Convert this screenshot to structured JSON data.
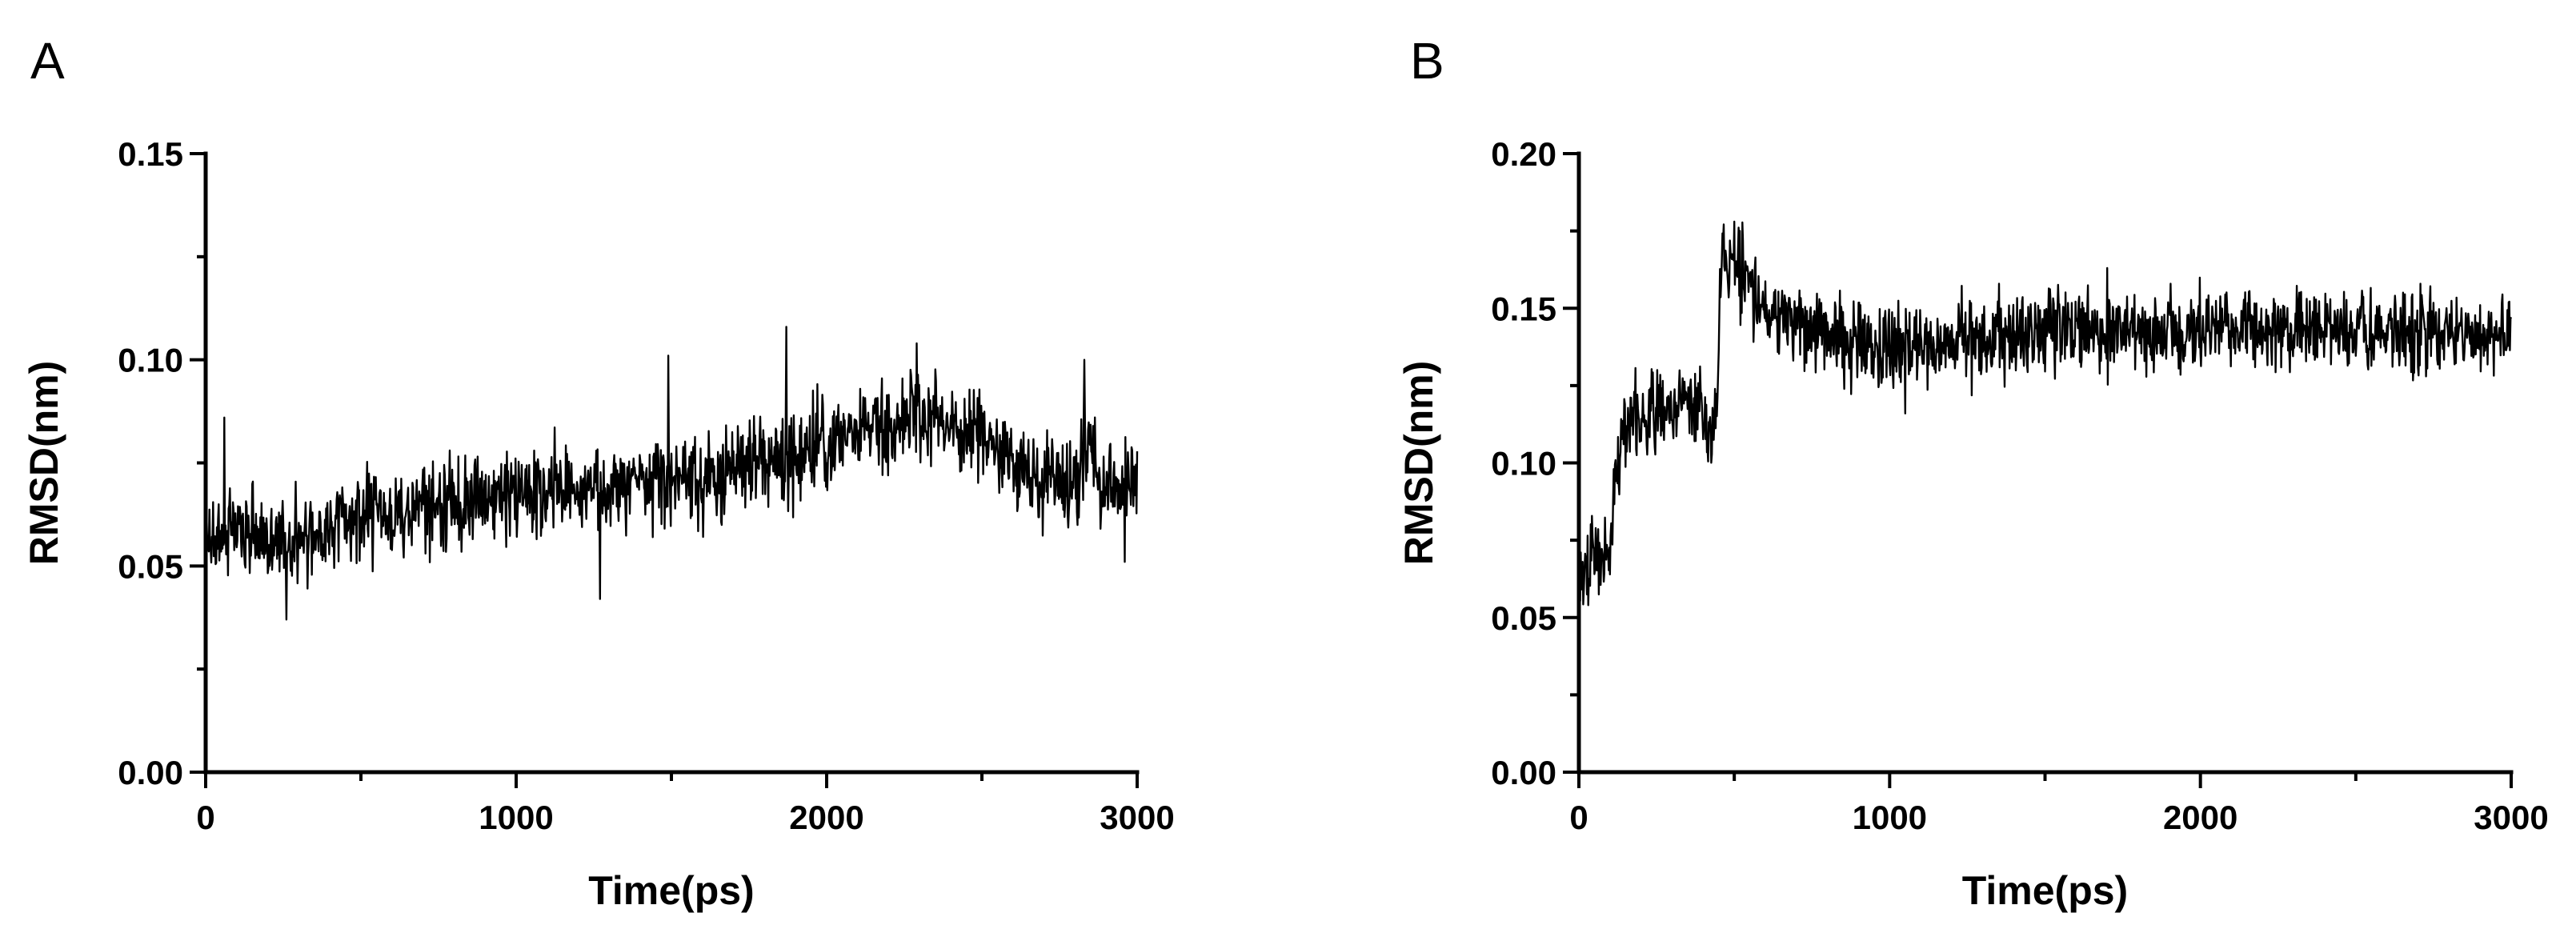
{
  "chart_data": [
    {
      "panel": "A",
      "type": "line",
      "xlabel": "Time(ps)",
      "ylabel": "RMSD(nm)",
      "xlim": [
        0,
        3000
      ],
      "ylim": [
        0,
        0.15
      ],
      "x_ticks": [
        0,
        1000,
        2000,
        3000
      ],
      "x_tick_labels": [
        "0",
        "1000",
        "2000",
        "3000"
      ],
      "x_minor_ticks": [
        500,
        1500,
        2500
      ],
      "y_ticks": [
        0,
        0.05,
        0.1,
        0.15
      ],
      "y_tick_labels": [
        "0.00",
        "0.05",
        "0.10",
        "0.15"
      ],
      "y_minor_ticks": [
        0.025,
        0.075,
        0.125
      ],
      "grid": false,
      "color": "#000000",
      "noise": 0.0055,
      "spikes": [
        {
          "x": 60,
          "y": 0.086
        },
        {
          "x": 260,
          "y": 0.037
        },
        {
          "x": 1270,
          "y": 0.042
        },
        {
          "x": 1490,
          "y": 0.101
        },
        {
          "x": 1870,
          "y": 0.108
        },
        {
          "x": 2290,
          "y": 0.104
        },
        {
          "x": 2830,
          "y": 0.1
        },
        {
          "x": 2960,
          "y": 0.051
        }
      ],
      "trend": [
        {
          "x": 0,
          "y": 0.056
        },
        {
          "x": 100,
          "y": 0.058
        },
        {
          "x": 250,
          "y": 0.056
        },
        {
          "x": 500,
          "y": 0.062
        },
        {
          "x": 800,
          "y": 0.066
        },
        {
          "x": 1000,
          "y": 0.068
        },
        {
          "x": 1300,
          "y": 0.069
        },
        {
          "x": 1600,
          "y": 0.071
        },
        {
          "x": 1900,
          "y": 0.077
        },
        {
          "x": 2100,
          "y": 0.082
        },
        {
          "x": 2300,
          "y": 0.087
        },
        {
          "x": 2500,
          "y": 0.082
        },
        {
          "x": 2650,
          "y": 0.071
        },
        {
          "x": 2800,
          "y": 0.07
        },
        {
          "x": 2850,
          "y": 0.08
        },
        {
          "x": 2900,
          "y": 0.069
        },
        {
          "x": 3000,
          "y": 0.07
        }
      ]
    },
    {
      "panel": "B",
      "type": "line",
      "xlabel": "Time(ps)",
      "ylabel": "RMSD(nm)",
      "xlim": [
        0,
        3000
      ],
      "ylim": [
        0,
        0.2
      ],
      "x_ticks": [
        0,
        1000,
        2000,
        3000
      ],
      "x_tick_labels": [
        "0",
        "1000",
        "2000",
        "3000"
      ],
      "x_minor_ticks": [
        500,
        1500,
        2500
      ],
      "y_ticks": [
        0,
        0.05,
        0.1,
        0.15,
        0.2
      ],
      "y_tick_labels": [
        "0.00",
        "0.05",
        "0.10",
        "0.15",
        "0.20"
      ],
      "y_minor_ticks": [
        0.025,
        0.075,
        0.125,
        0.175
      ],
      "grid": false,
      "color": "#000000",
      "noise": 0.0065,
      "spikes": [
        {
          "x": 30,
          "y": 0.054
        },
        {
          "x": 500,
          "y": 0.178
        },
        {
          "x": 1050,
          "y": 0.116
        },
        {
          "x": 1700,
          "y": 0.163
        }
      ],
      "trend": [
        {
          "x": 0,
          "y": 0.06
        },
        {
          "x": 50,
          "y": 0.07
        },
        {
          "x": 100,
          "y": 0.068
        },
        {
          "x": 120,
          "y": 0.1
        },
        {
          "x": 150,
          "y": 0.112
        },
        {
          "x": 250,
          "y": 0.115
        },
        {
          "x": 350,
          "y": 0.12
        },
        {
          "x": 440,
          "y": 0.112
        },
        {
          "x": 460,
          "y": 0.163
        },
        {
          "x": 520,
          "y": 0.163
        },
        {
          "x": 600,
          "y": 0.148
        },
        {
          "x": 800,
          "y": 0.142
        },
        {
          "x": 1000,
          "y": 0.138
        },
        {
          "x": 1500,
          "y": 0.142
        },
        {
          "x": 2000,
          "y": 0.143
        },
        {
          "x": 2500,
          "y": 0.143
        },
        {
          "x": 3000,
          "y": 0.142
        }
      ]
    }
  ]
}
